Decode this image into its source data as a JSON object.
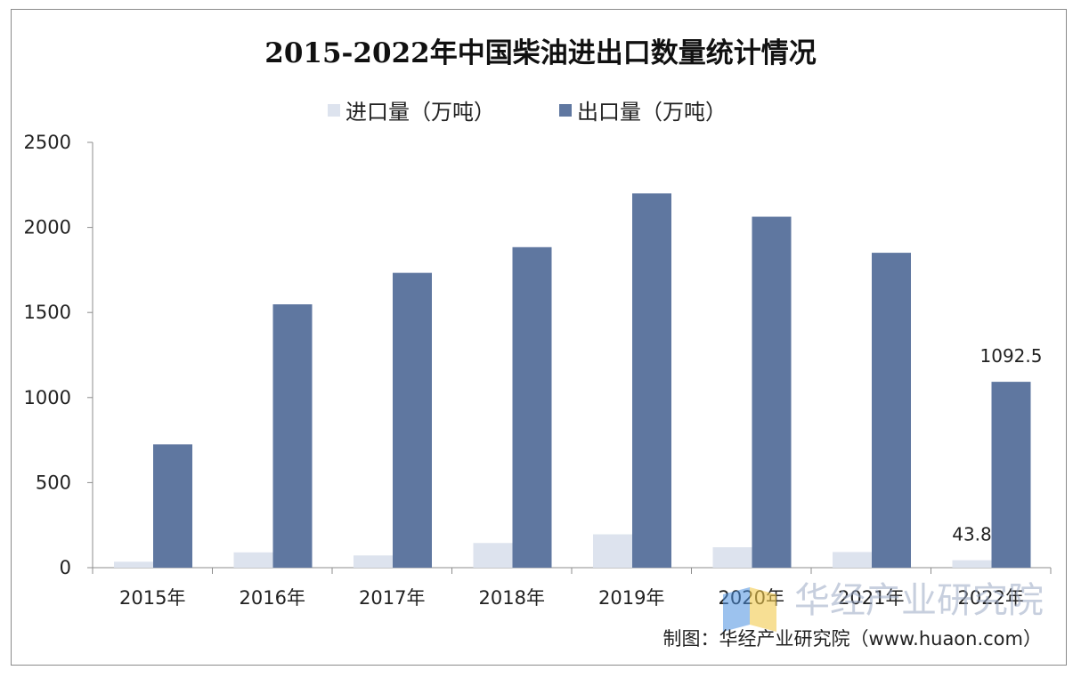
{
  "colors": {
    "import": "#dde3ee",
    "export": "#5f77a0",
    "axis": "#8c8c8c",
    "watermark_blue": "#4a8fe0",
    "watermark_yellow": "#f2c94c"
  },
  "chart_data": {
    "type": "bar",
    "title": "2015-2022年中国柴油进出口数量统计情况",
    "categories": [
      "2015年",
      "2016年",
      "2017年",
      "2018年",
      "2019年",
      "2020年",
      "2021年",
      "2022年"
    ],
    "series": [
      {
        "name": "进口量（万吨）",
        "values": [
          35,
          90,
          72,
          145,
          196,
          120,
          92,
          43.8
        ]
      },
      {
        "name": "出口量（万吨）",
        "values": [
          725,
          1548,
          1733,
          1884,
          2200,
          2063,
          1851,
          1092.5
        ]
      }
    ],
    "ylim": [
      0,
      2500
    ],
    "yticks": [
      "0",
      "500",
      "1000",
      "1500",
      "2000",
      "2500"
    ],
    "data_labels": [
      {
        "series": 0,
        "index": 7,
        "text": "43.8"
      },
      {
        "series": 1,
        "index": 7,
        "text": "1092.5"
      }
    ],
    "grid": false,
    "legend_position": "top-center"
  },
  "source": "制图：华经产业研究院（www.huaon.com）",
  "watermark": "华经产业研究院",
  "watermark_icon": "huajing-logo-icon"
}
